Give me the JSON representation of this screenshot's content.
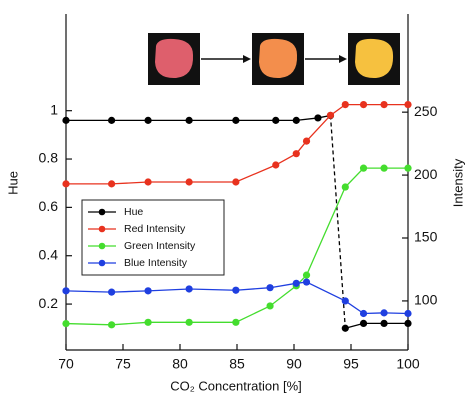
{
  "chart_data": {
    "type": "line",
    "xlabel": "CO₂ Concentration [%]",
    "ylabel": "Hue",
    "y2label": "Intensity",
    "xlim": [
      70,
      100
    ],
    "xticks": [
      70,
      75,
      80,
      85,
      90,
      95,
      100
    ],
    "ylim": [
      0.01,
      1.4
    ],
    "yticks": [
      0.2,
      0.4,
      0.6,
      0.8,
      1
    ],
    "y2lim": [
      61,
      328
    ],
    "y2ticks": [
      100,
      150,
      200,
      250
    ],
    "grid": false,
    "legend": "center left",
    "series": [
      {
        "name": "Hue",
        "color": "#000000",
        "axis": "y",
        "dashed_segment_start": 8,
        "x": [
          70,
          74,
          77.2,
          80.8,
          84.9,
          88.4,
          90.2,
          92.1,
          93.2,
          94.5,
          96.1,
          97.9,
          100
        ],
        "values": [
          0.96,
          0.96,
          0.96,
          0.96,
          0.96,
          0.96,
          0.96,
          0.97,
          0.98,
          0.1,
          0.12,
          0.12,
          0.12
        ]
      },
      {
        "name": "Red Intensity",
        "color": "#e8321e",
        "axis": "y2",
        "x": [
          70,
          74,
          77.2,
          80.8,
          84.9,
          88.4,
          90.2,
          91.1,
          93.2,
          94.5,
          96.1,
          97.9,
          100
        ],
        "values": [
          193,
          193,
          194.5,
          194.5,
          194.5,
          208,
          217,
          227,
          247.5,
          256,
          256,
          256,
          256
        ]
      },
      {
        "name": "Green Intensity",
        "color": "#44dd2e",
        "axis": "y2",
        "x": [
          70,
          74,
          77.2,
          80.8,
          84.9,
          87.9,
          90.2,
          91.1,
          94.5,
          96.1,
          97.9,
          100
        ],
        "values": [
          82,
          81,
          83,
          83,
          83,
          96,
          112,
          120.5,
          190.5,
          205.5,
          205.5,
          205.5
        ]
      },
      {
        "name": "Blue Intensity",
        "color": "#1f3fe0",
        "axis": "y2",
        "x": [
          70,
          74,
          77.2,
          80.8,
          84.9,
          87.9,
          90.2,
          91.1,
          94.5,
          96.1,
          97.9,
          100
        ],
        "values": [
          108,
          107,
          108,
          109.5,
          108.5,
          110.5,
          114,
          115,
          100,
          90,
          90.5,
          90
        ]
      }
    ]
  }
}
